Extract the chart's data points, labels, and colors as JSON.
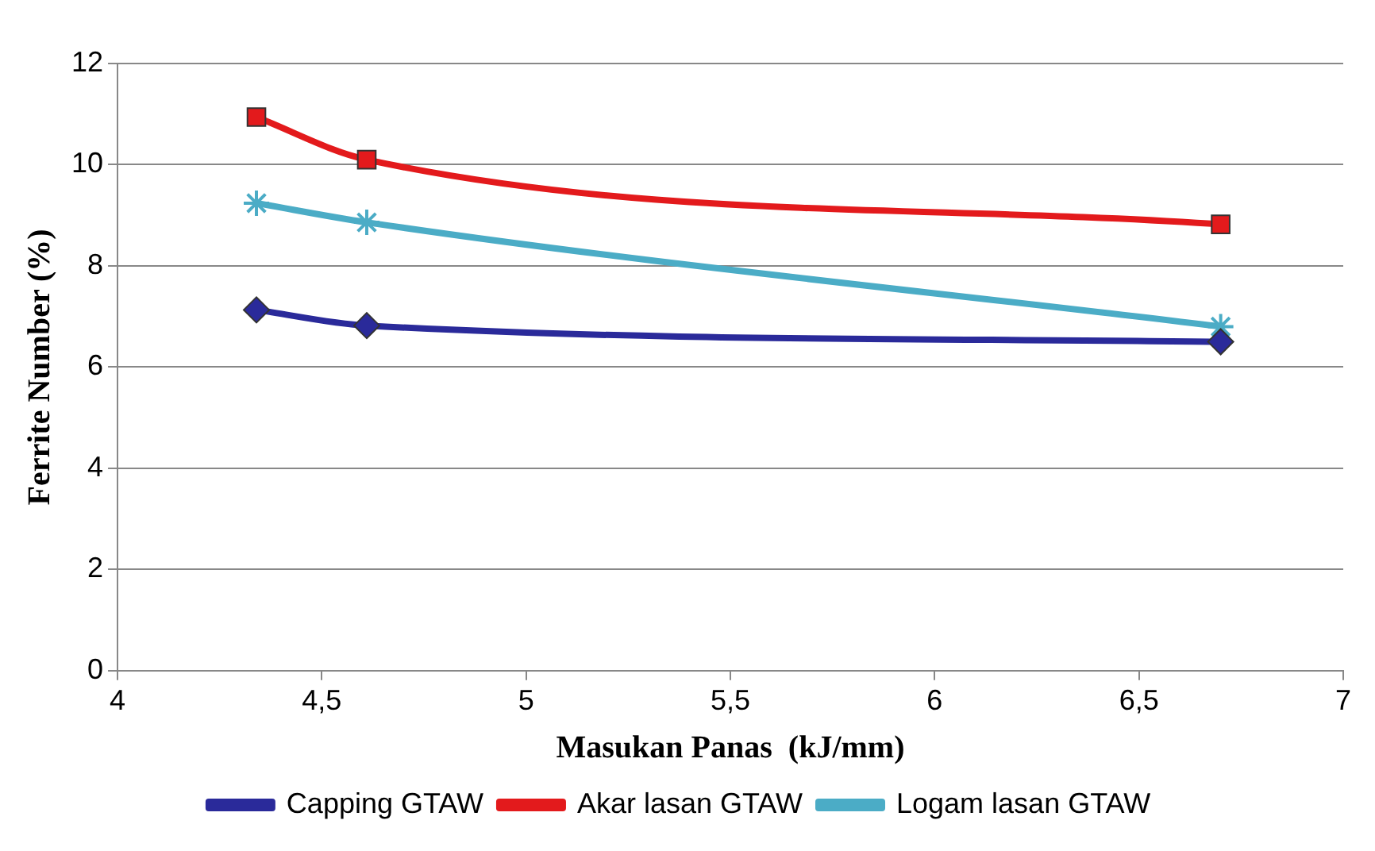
{
  "chart_data": {
    "type": "line",
    "xlabel": "Masukan Panas  (kJ/mm)",
    "ylabel": "Ferrite Number (%)",
    "x": [
      4.34,
      4.61,
      6.7
    ],
    "series": [
      {
        "name": "Capping GTAW",
        "color": "#2a2a9a",
        "values": [
          7.13,
          6.82,
          6.5
        ],
        "marker": "diamond"
      },
      {
        "name": "Akar lasan GTAW",
        "color": "#e31a1c",
        "values": [
          10.94,
          10.1,
          8.82
        ],
        "marker": "square"
      },
      {
        "name": "Logam lasan GTAW",
        "color": "#4bacc6",
        "values": [
          9.24,
          8.86,
          6.8
        ],
        "marker": "cross"
      }
    ],
    "xlim": [
      4,
      7
    ],
    "xticks": [
      4,
      {
        "value": 4.5,
        "label": "4,5"
      },
      5,
      {
        "value": 5.5,
        "label": "5,5"
      },
      6,
      {
        "value": 6.5,
        "label": "6,5"
      },
      7
    ],
    "ylim": [
      0,
      12
    ],
    "yticks": [
      0,
      2,
      4,
      6,
      8,
      10,
      12
    ],
    "grid": "y",
    "legend": "bottom"
  }
}
